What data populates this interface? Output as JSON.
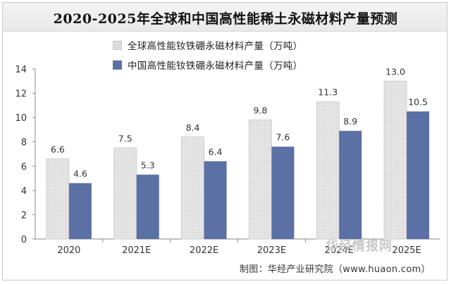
{
  "chart_data": {
    "type": "bar",
    "title": "2020-2025年全球和中国高性能稀土永磁材料产量预测",
    "categories": [
      "2020",
      "2021E",
      "2022E",
      "2023E",
      "2024E",
      "2025E"
    ],
    "series": [
      {
        "name": "全球高性能钕铁硼永磁材料产量（万吨）",
        "values": [
          6.6,
          7.5,
          8.4,
          9.8,
          11.3,
          13.0
        ],
        "labels": [
          "6.6",
          "7.5",
          "8.4",
          "9.8",
          "11.3",
          "13.0"
        ],
        "color": "#dcdcdc"
      },
      {
        "name": "中国高性能钕铁硼永磁材料产量（万吨）",
        "values": [
          4.6,
          5.3,
          6.4,
          7.6,
          8.9,
          10.5
        ],
        "labels": [
          "4.6",
          "5.3",
          "6.4",
          "7.6",
          "8.9",
          "10.5"
        ],
        "color": "#5b70a5"
      }
    ],
    "ylim": [
      0,
      14
    ],
    "yticks": [
      "0",
      "2",
      "4",
      "6",
      "8",
      "10",
      "12",
      "14"
    ],
    "grid": false,
    "legend": "top"
  },
  "source": "制图：华经产业研究院（www.huaon.com）",
  "watermark": "华经情报网"
}
